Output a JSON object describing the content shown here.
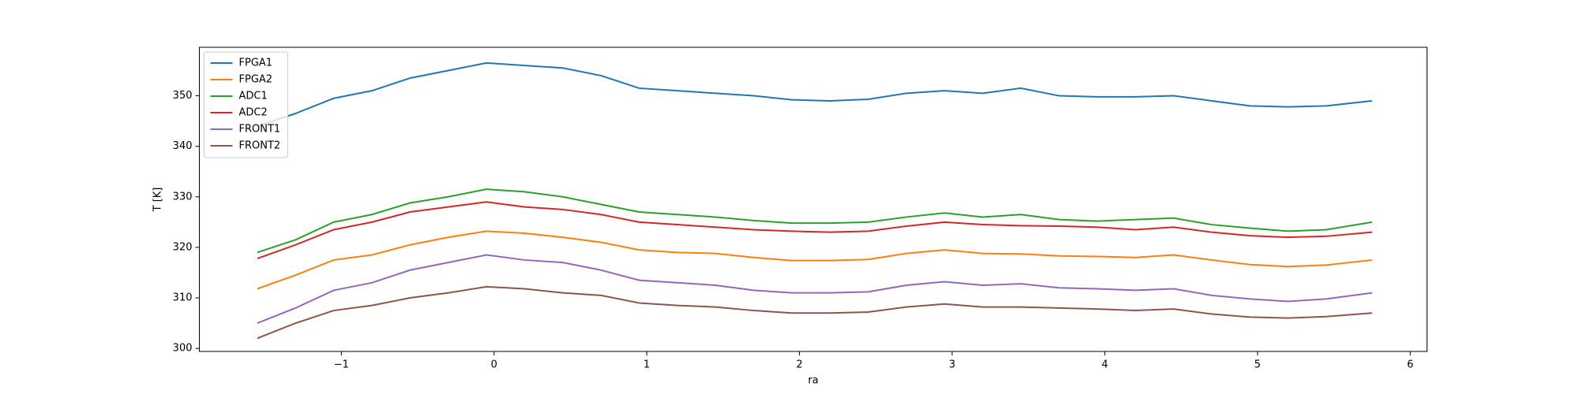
{
  "chart_data": {
    "type": "line",
    "xlabel": "ra",
    "ylabel": "T [K]",
    "xlim": [
      -1.93,
      6.11
    ],
    "ylim": [
      299.4,
      359.6
    ],
    "xticks": [
      {
        "value": -1,
        "label": "−1"
      },
      0,
      1,
      2,
      3,
      4,
      5,
      6
    ],
    "yticks": [
      300,
      310,
      320,
      330,
      340,
      350
    ],
    "legend": "upper left",
    "x": [
      -1.55,
      -1.3,
      -1.05,
      -0.8,
      -0.55,
      -0.3,
      -0.05,
      0.2,
      0.45,
      0.7,
      0.95,
      1.2,
      1.45,
      1.7,
      1.95,
      2.2,
      2.45,
      2.7,
      2.95,
      3.2,
      3.45,
      3.7,
      3.95,
      4.2,
      4.45,
      4.7,
      4.95,
      5.2,
      5.45,
      5.75
    ],
    "series": [
      {
        "name": "FPGA1",
        "color": "#1f77b4",
        "values": [
          344,
          346.5,
          349.5,
          351,
          353.5,
          355,
          356.5,
          356,
          355.5,
          354,
          351.5,
          351,
          350.5,
          350,
          349.2,
          349,
          349.3,
          350.5,
          351,
          350.5,
          351.5,
          350,
          349.8,
          349.8,
          350,
          349,
          348,
          347.8,
          348,
          349
        ]
      },
      {
        "name": "FPGA2",
        "color": "#ff7f0e",
        "values": [
          311.8,
          314.5,
          317.5,
          318.5,
          320.5,
          322,
          323.2,
          322.8,
          322,
          321,
          319.5,
          319,
          318.8,
          318,
          317.4,
          317.4,
          317.6,
          318.8,
          319.5,
          318.8,
          318.7,
          318.3,
          318.2,
          318,
          318.5,
          317.5,
          316.6,
          316.2,
          316.5,
          317.5
        ]
      },
      {
        "name": "ADC1",
        "color": "#2ca02c",
        "values": [
          319,
          321.5,
          325,
          326.5,
          328.8,
          330,
          331.5,
          331,
          330,
          328.5,
          327,
          326.5,
          326,
          325.3,
          324.8,
          324.8,
          325,
          326,
          326.8,
          326,
          326.5,
          325.5,
          325.2,
          325.5,
          325.8,
          324.5,
          323.8,
          323.2,
          323.5,
          325
        ]
      },
      {
        "name": "ADC2",
        "color": "#d62728",
        "values": [
          317.8,
          320.5,
          323.5,
          325,
          327,
          328,
          329,
          328,
          327.5,
          326.5,
          325,
          324.5,
          324,
          323.5,
          323.2,
          323,
          323.2,
          324.2,
          325,
          324.5,
          324.3,
          324.2,
          324,
          323.5,
          324,
          323,
          322.3,
          322,
          322.2,
          323
        ]
      },
      {
        "name": "FRONT1",
        "color": "#9467bd",
        "values": [
          305,
          308,
          311.5,
          313,
          315.5,
          317,
          318.5,
          317.5,
          317,
          315.5,
          313.5,
          313,
          312.5,
          311.5,
          311,
          311,
          311.2,
          312.5,
          313.2,
          312.5,
          312.8,
          312,
          311.8,
          311.5,
          311.8,
          310.5,
          309.8,
          309.3,
          309.8,
          311
        ]
      },
      {
        "name": "FRONT2",
        "color": "#8c564b",
        "values": [
          302,
          305,
          307.5,
          308.5,
          310,
          311,
          312.2,
          311.8,
          311,
          310.5,
          309,
          308.5,
          308.2,
          307.5,
          307,
          307,
          307.2,
          308.2,
          308.8,
          308.2,
          308.2,
          308,
          307.8,
          307.5,
          307.8,
          306.8,
          306.2,
          306,
          306.3,
          307
        ]
      }
    ]
  }
}
